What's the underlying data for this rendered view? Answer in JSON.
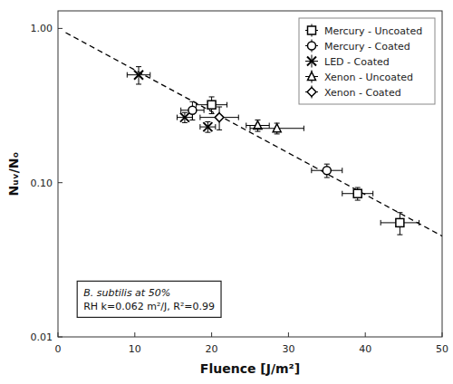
{
  "chart_data": {
    "type": "scatter",
    "xlabel": "Fluence [J/m²]",
    "ylabel": "Nᵤᵥ/Nₒ",
    "annotation": [
      "B. subtilis at 50%",
      "RH  k=0.062 m²/J,  R²=0.99"
    ],
    "xlim": [
      0,
      50
    ],
    "xticks": [
      0,
      10,
      20,
      30,
      40,
      50
    ],
    "ylim": [
      0.01,
      1.3
    ],
    "yticks": [
      0.01,
      {
        "value": 0.1,
        "label": "0.10"
      },
      {
        "value": 1,
        "label": "1.00"
      }
    ],
    "log": "y",
    "grid": false,
    "legend": "upper right",
    "series": [
      {
        "type": "line",
        "line_style": "dashed",
        "color": "#000000",
        "x": [
          1.0,
          50.0
        ],
        "values": [
          0.9398829,
          0.0450492
        ]
      },
      {
        "name": "Mercury - Uncoated",
        "type": "scatter",
        "marker": "square",
        "color": "#000000",
        "x": [
          20.0,
          39.0,
          44.5
        ],
        "values": [
          0.32,
          0.085,
          0.055
        ],
        "xerr": [
          2.0,
          2.0,
          2.5
        ],
        "yerr": [
          0.04,
          0.008,
          0.009
        ]
      },
      {
        "name": "Mercury - Coated",
        "type": "scatter",
        "marker": "circle",
        "color": "#000000",
        "x": [
          17.5,
          35.0
        ],
        "values": [
          0.295,
          0.12
        ],
        "xerr": [
          1.5,
          2.0
        ],
        "yerr": [
          0.04,
          0.012
        ]
      },
      {
        "name": "LED - Coated",
        "type": "scatter",
        "marker": "x",
        "color": "#000000",
        "x": [
          10.5,
          16.5,
          19.5
        ],
        "values": [
          0.5,
          0.265,
          0.23
        ],
        "xerr": [
          1.5,
          1.0,
          1.0
        ],
        "yerr": [
          0.065,
          0.02,
          0.018
        ]
      },
      {
        "name": "Xenon - Uncoated",
        "type": "scatter",
        "marker": "triangle",
        "color": "#000000",
        "x": [
          26.0,
          28.5
        ],
        "values": [
          0.235,
          0.225
        ],
        "xerr": [
          1.5,
          3.5
        ],
        "yerr": [
          0.02,
          0.018
        ]
      },
      {
        "name": "Xenon - Coated",
        "type": "scatter",
        "marker": "diamond",
        "color": "#000000",
        "x": [
          21.0
        ],
        "values": [
          0.265
        ],
        "xerr": [
          2.5
        ],
        "yerr": [
          0.045
        ]
      }
    ]
  }
}
